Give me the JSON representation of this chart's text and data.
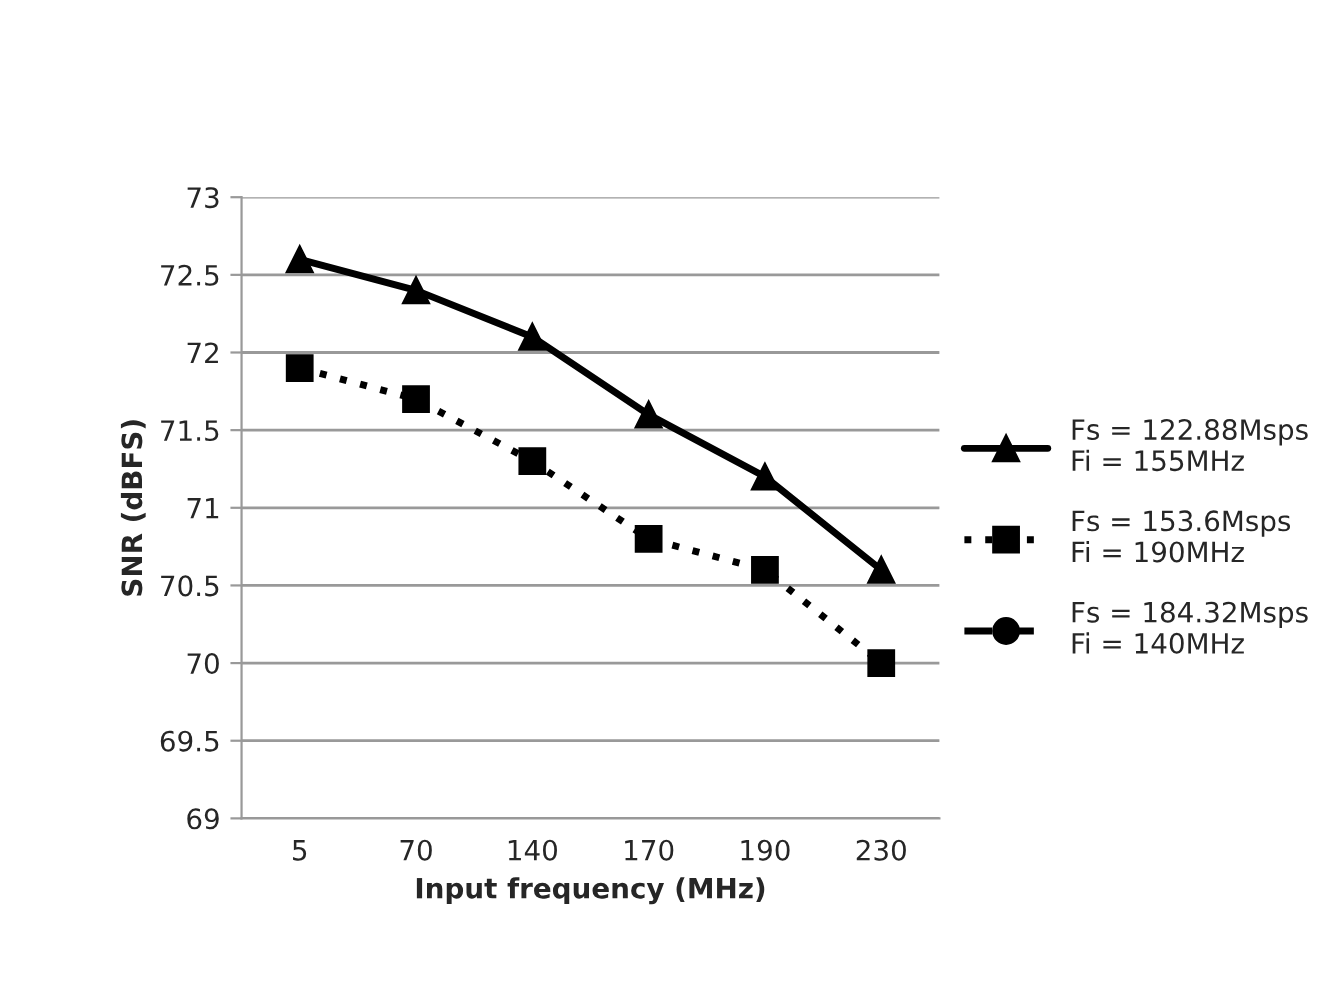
{
  "chart_data": {
    "type": "line",
    "xlabel": "Input frequency (MHz)",
    "ylabel": "SNR (dBFS)",
    "categories": [
      "5",
      "70",
      "140",
      "170",
      "190",
      "230"
    ],
    "series": [
      {
        "name": "Fs = 122.88Msps\nFi = 155MHz",
        "color": "#000000",
        "marker": "triangle",
        "line_style": "solid",
        "values": [
          72.6,
          72.4,
          72.1,
          71.6,
          71.2,
          70.6
        ]
      },
      {
        "name": "Fs = 153.6Msps\nFi = 190MHz",
        "color": "#000000",
        "marker": "square",
        "line_style": "dotted",
        "values": [
          71.9,
          71.7,
          71.3,
          70.8,
          70.6,
          70.0
        ]
      },
      {
        "name": "Fs = 184.32Msps\nFi = 140MHz",
        "color": "#000000",
        "marker": "circle",
        "line_style": "dashed",
        "values": [
          null,
          null,
          null,
          null,
          null,
          null
        ]
      }
    ],
    "ylim": [
      69,
      73
    ],
    "yticks": [
      69,
      "69.5",
      70,
      "70.5",
      71,
      "71.5",
      72,
      "72.5",
      73
    ],
    "grid": "y",
    "legend": "right"
  }
}
